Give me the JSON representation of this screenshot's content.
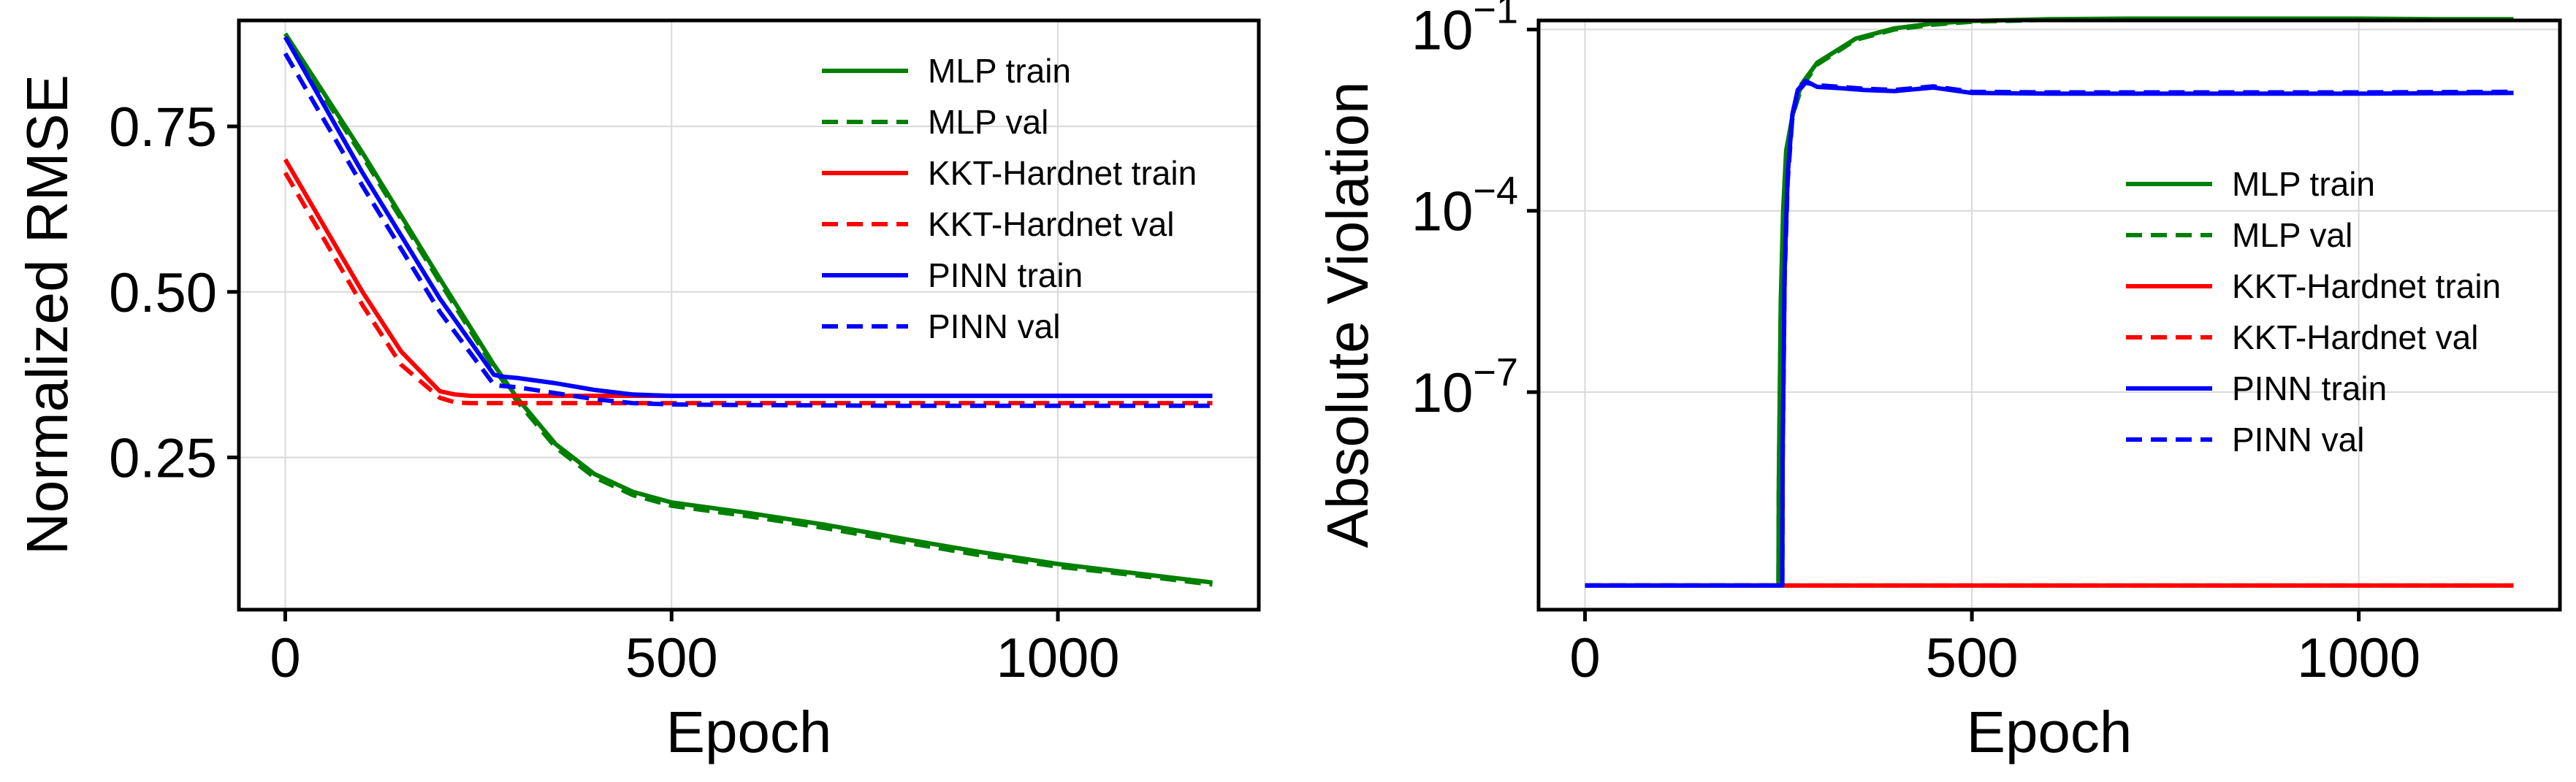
{
  "chart_data": [
    {
      "type": "line",
      "title": "",
      "xlabel": "Epoch",
      "ylabel": "Normalized RMSE",
      "xlim": [
        -60,
        1260
      ],
      "ylim": [
        0.02,
        0.91
      ],
      "yscale": "linear",
      "xticks": [
        0,
        500,
        1000
      ],
      "xtick_labels": [
        "0",
        "500",
        "1000"
      ],
      "yticks": [
        0.25,
        0.5,
        0.75
      ],
      "ytick_labels": [
        "0.25",
        "0.50",
        "0.75"
      ],
      "grid": true,
      "legend_position": "upper-right",
      "series": [
        {
          "name": "MLP train",
          "color": "#008000",
          "dash": "solid",
          "x": [
            0,
            100,
            200,
            270,
            300,
            350,
            400,
            450,
            500,
            600,
            700,
            800,
            900,
            1000,
            1100,
            1200
          ],
          "y": [
            0.89,
            0.71,
            0.52,
            0.39,
            0.34,
            0.27,
            0.225,
            0.198,
            0.182,
            0.166,
            0.148,
            0.127,
            0.107,
            0.089,
            0.075,
            0.061
          ]
        },
        {
          "name": "MLP val",
          "color": "#008000",
          "dash": "dashed",
          "x": [
            0,
            100,
            200,
            270,
            300,
            350,
            400,
            450,
            500,
            600,
            700,
            800,
            900,
            1000,
            1100,
            1200
          ],
          "y": [
            0.885,
            0.705,
            0.515,
            0.385,
            0.335,
            0.265,
            0.22,
            0.193,
            0.177,
            0.161,
            0.143,
            0.122,
            0.102,
            0.085,
            0.072,
            0.058
          ]
        },
        {
          "name": "KKT-Hardnet train",
          "color": "#ff0000",
          "dash": "solid",
          "x": [
            0,
            50,
            100,
            150,
            200,
            220,
            240,
            300,
            400,
            500,
            600,
            800,
            1000,
            1200
          ],
          "y": [
            0.7,
            0.6,
            0.5,
            0.41,
            0.35,
            0.345,
            0.343,
            0.343,
            0.343,
            0.343,
            0.343,
            0.343,
            0.343,
            0.343
          ]
        },
        {
          "name": "KKT-Hardnet val",
          "color": "#ff0000",
          "dash": "dashed",
          "x": [
            0,
            50,
            100,
            150,
            200,
            220,
            240,
            300,
            400,
            500,
            600,
            800,
            1000,
            1200
          ],
          "y": [
            0.68,
            0.58,
            0.48,
            0.39,
            0.34,
            0.333,
            0.332,
            0.332,
            0.332,
            0.332,
            0.332,
            0.332,
            0.332,
            0.332
          ]
        },
        {
          "name": "PINN train",
          "color": "#0000ff",
          "dash": "solid",
          "x": [
            0,
            100,
            200,
            270,
            280,
            300,
            350,
            400,
            450,
            500,
            600,
            800,
            1000,
            1200
          ],
          "y": [
            0.885,
            0.68,
            0.49,
            0.375,
            0.372,
            0.37,
            0.362,
            0.352,
            0.345,
            0.343,
            0.343,
            0.343,
            0.343,
            0.343
          ]
        },
        {
          "name": "PINN val",
          "color": "#0000ff",
          "dash": "dashed",
          "x": [
            0,
            100,
            200,
            270,
            280,
            300,
            350,
            400,
            450,
            500,
            600,
            800,
            1000,
            1200
          ],
          "y": [
            0.86,
            0.66,
            0.47,
            0.36,
            0.358,
            0.356,
            0.347,
            0.338,
            0.332,
            0.33,
            0.329,
            0.328,
            0.328,
            0.328
          ]
        }
      ]
    },
    {
      "type": "line",
      "title": "",
      "xlabel": "Epoch",
      "ylabel": "Absolute Violation",
      "xlim": [
        -60,
        1260
      ],
      "ylim_log10": [
        -10.6,
        -0.85
      ],
      "yscale": "log",
      "xticks": [
        0,
        500,
        1000
      ],
      "xtick_labels": [
        "0",
        "500",
        "1000"
      ],
      "yticks_log10": [
        -7,
        -4,
        -1
      ],
      "ytick_base": "10",
      "ytick_exponents": [
        "−7",
        "−4",
        "−1"
      ],
      "grid": true,
      "legend_position": "center-right",
      "series": [
        {
          "name": "MLP train",
          "color": "#008000",
          "dash": "solid",
          "x": [
            0,
            250,
            250.5,
            253,
            256,
            260,
            270,
            280,
            300,
            350,
            400,
            450,
            500,
            600,
            700,
            800,
            900,
            1000,
            1100,
            1200
          ],
          "y_log10": [
            -10.2,
            -10.2,
            -8.5,
            -5.5,
            -4.0,
            -3.0,
            -2.3,
            -1.9,
            -1.55,
            -1.15,
            -0.98,
            -0.9,
            -0.86,
            -0.83,
            -0.82,
            -0.82,
            -0.82,
            -0.82,
            -0.83,
            -0.83
          ]
        },
        {
          "name": "MLP val",
          "color": "#008000",
          "dash": "dashed",
          "x": [
            0,
            250,
            250.5,
            253,
            256,
            260,
            270,
            280,
            300,
            350,
            400,
            450,
            500,
            600,
            700,
            800,
            900,
            1000,
            1100,
            1200
          ],
          "y_log10": [
            -10.2,
            -10.2,
            -8.6,
            -5.6,
            -4.1,
            -3.05,
            -2.35,
            -1.95,
            -1.58,
            -1.17,
            -1.0,
            -0.92,
            -0.87,
            -0.84,
            -0.83,
            -0.83,
            -0.83,
            -0.83,
            -0.84,
            -0.84
          ]
        },
        {
          "name": "KKT-Hardnet train",
          "color": "#ff0000",
          "dash": "solid",
          "x": [
            0,
            1200
          ],
          "y_log10": [
            -10.2,
            -10.2
          ]
        },
        {
          "name": "KKT-Hardnet val",
          "color": "#ff0000",
          "dash": "dashed",
          "x": [
            0,
            1200
          ],
          "y_log10": [
            -10.2,
            -10.2
          ]
        },
        {
          "name": "PINN train",
          "color": "#0000ff",
          "dash": "solid",
          "x": [
            0,
            255,
            255.5,
            258,
            262,
            268,
            275,
            285,
            300,
            330,
            360,
            400,
            450,
            500,
            600,
            800,
            1000,
            1200
          ],
          "y_log10": [
            -10.2,
            -10.2,
            -8.0,
            -5.0,
            -3.4,
            -2.4,
            -2.0,
            -1.85,
            -1.95,
            -1.97,
            -2.0,
            -2.02,
            -1.96,
            -2.05,
            -2.06,
            -2.06,
            -2.06,
            -2.05
          ]
        },
        {
          "name": "PINN val",
          "color": "#0000ff",
          "dash": "dashed",
          "x": [
            0,
            255,
            255.5,
            258,
            262,
            268,
            275,
            285,
            300,
            330,
            360,
            400,
            450,
            500,
            600,
            800,
            1000,
            1200
          ],
          "y_log10": [
            -10.2,
            -10.2,
            -8.1,
            -5.1,
            -3.5,
            -2.45,
            -2.03,
            -1.88,
            -1.92,
            -1.95,
            -1.98,
            -2.0,
            -1.94,
            -2.03,
            -2.04,
            -2.04,
            -2.04,
            -2.03
          ]
        }
      ]
    }
  ]
}
